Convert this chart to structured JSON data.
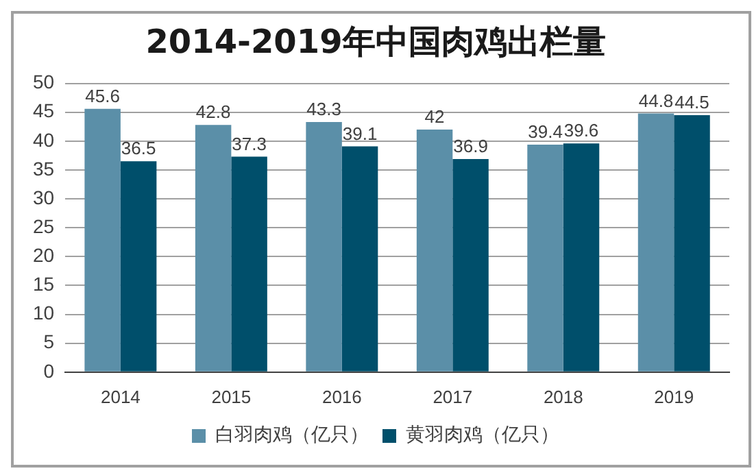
{
  "chart_data": {
    "type": "bar",
    "title": "2014-2019年中国肉鸡出栏量",
    "categories": [
      "2014",
      "2015",
      "2016",
      "2017",
      "2018",
      "2019"
    ],
    "series": [
      {
        "name": "白羽肉鸡（亿只）",
        "color": "#5b8fa8",
        "values": [
          45.6,
          42.8,
          43.3,
          42,
          39.4,
          44.8
        ]
      },
      {
        "name": "黄羽肉鸡（亿只）",
        "color": "#004f6b",
        "values": [
          36.5,
          37.3,
          39.1,
          36.9,
          39.6,
          44.5
        ]
      }
    ],
    "ylim": [
      0,
      50
    ],
    "yticks": [
      0,
      5,
      10,
      15,
      20,
      25,
      30,
      35,
      40,
      45,
      50
    ],
    "grid": "y",
    "legend": "bottom",
    "data_labels": true
  }
}
